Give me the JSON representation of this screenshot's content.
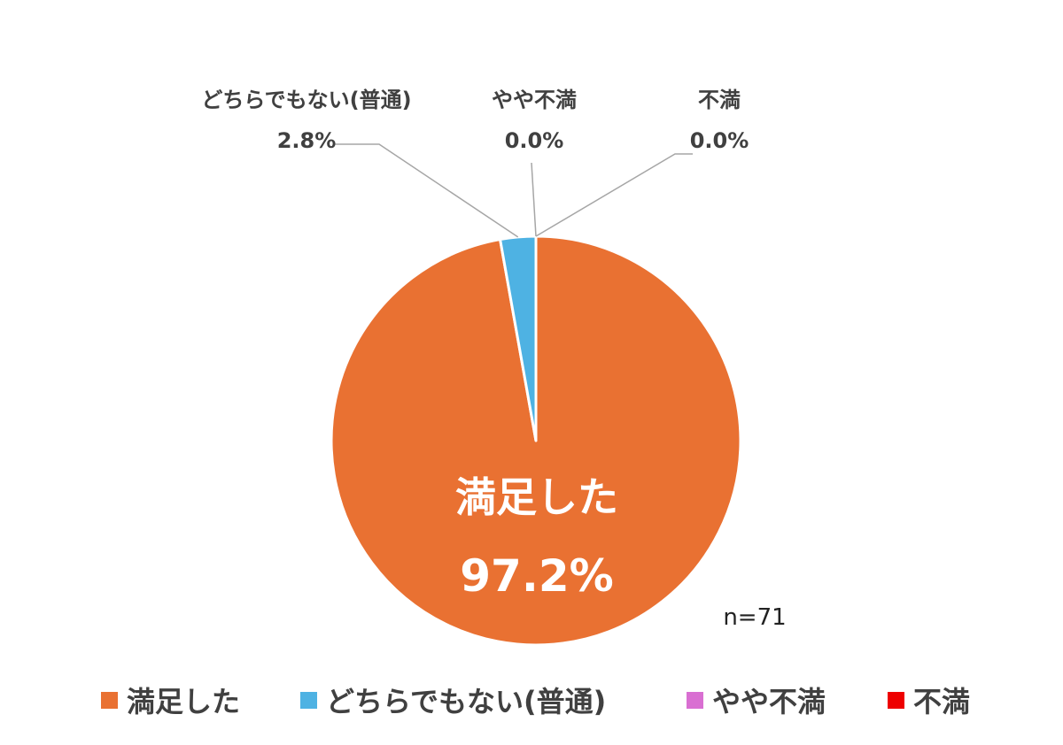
{
  "chart_data": {
    "type": "pie",
    "slices": [
      {
        "label": "満足した",
        "value": 97.2,
        "display": "97.2%",
        "color": "#E97132"
      },
      {
        "label": "どちらでもない(普通)",
        "value": 2.8,
        "display": "2.8%",
        "color": "#4EB2E3"
      },
      {
        "label": "やや不満",
        "value": 0.0,
        "display": "0.0%",
        "color": "#D96FD2"
      },
      {
        "label": "不満",
        "value": 0.0,
        "display": "0.0%",
        "color": "#EE0000"
      }
    ],
    "sample_size": "n=71",
    "legend_position": "bottom",
    "start_angle": "12 o'clock",
    "direction": "clockwise"
  }
}
